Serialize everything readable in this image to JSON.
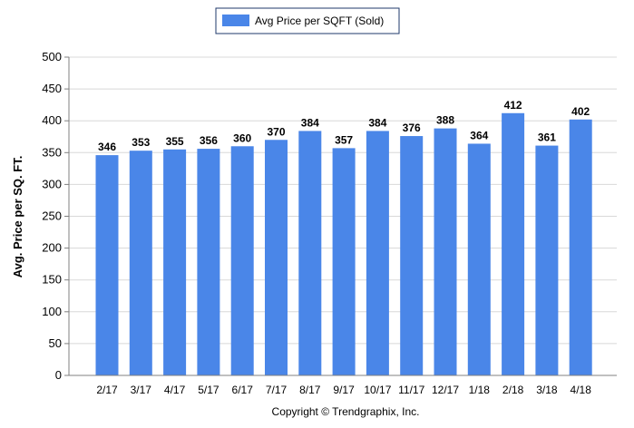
{
  "chart_data": {
    "type": "bar",
    "categories": [
      "2/17",
      "3/17",
      "4/17",
      "5/17",
      "6/17",
      "7/17",
      "8/17",
      "9/17",
      "10/17",
      "11/17",
      "12/17",
      "1/18",
      "2/18",
      "3/18",
      "4/18"
    ],
    "series": [
      {
        "name": "Avg Price per SQFT (Sold)",
        "color": "#4a86e8",
        "values": [
          346,
          353,
          355,
          356,
          360,
          370,
          384,
          357,
          384,
          376,
          388,
          364,
          412,
          361,
          402
        ]
      }
    ],
    "value_labels": [
      "346",
      "353",
      "355",
      "356",
      "360",
      "370",
      "384",
      "357",
      "384",
      "376",
      "388",
      "364",
      "412",
      "361",
      "402"
    ],
    "yticks": [
      "0",
      "50",
      "100",
      "150",
      "200",
      "250",
      "300",
      "350",
      "400",
      "450",
      "500"
    ],
    "ylim": [
      0,
      500
    ],
    "ylabel": "Avg. Price per SQ. FT.",
    "xlabel": "",
    "grid": true,
    "legend_position": "top-center"
  },
  "footer": "Copyright © Trendgraphix, Inc."
}
